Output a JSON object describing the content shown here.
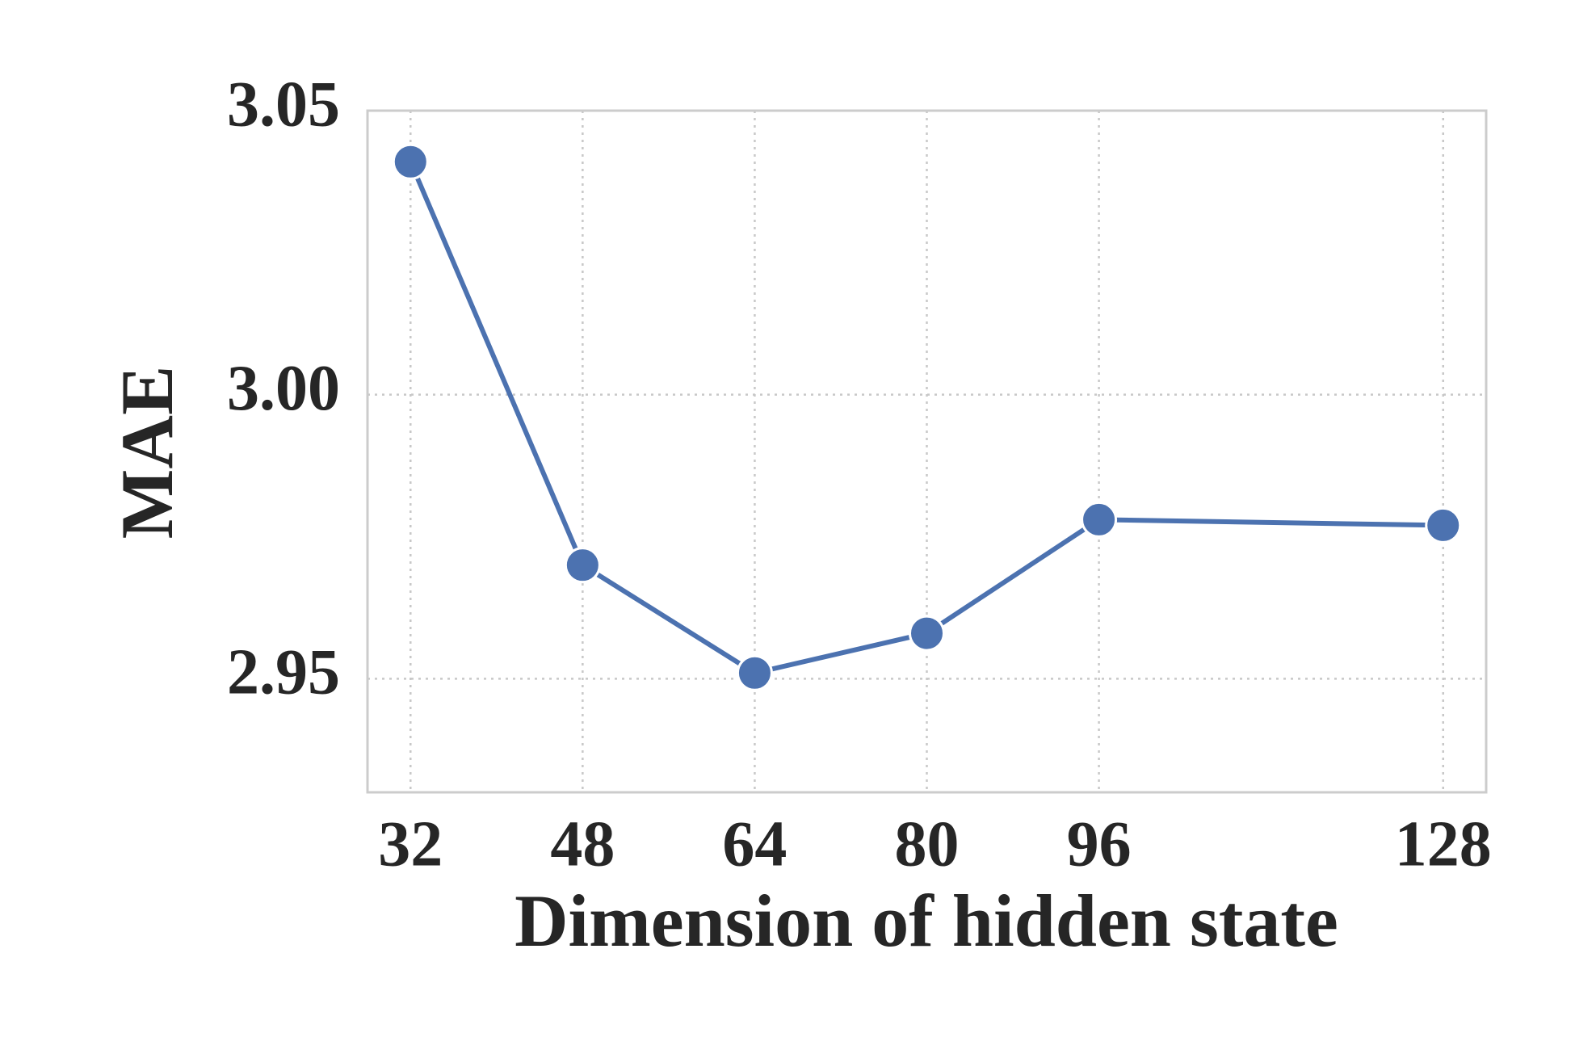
{
  "chart_data": {
    "type": "line",
    "x_label": "Dimension of hidden state",
    "y_label": "MAE",
    "x": [
      32,
      48,
      64,
      80,
      96,
      128
    ],
    "series": [
      {
        "color": "#4c72b0",
        "values": [
          3.041,
          2.97,
          2.951,
          2.958,
          2.978,
          2.977
        ]
      }
    ],
    "xlim": [
      28,
      132
    ],
    "xticks": [
      32,
      48,
      64,
      80,
      96,
      128
    ],
    "ylim": [
      2.93,
      3.05
    ],
    "yticks": [
      2.95,
      {
        "value": 3,
        "label": "3.00"
      },
      3.05
    ],
    "grid": true
  }
}
